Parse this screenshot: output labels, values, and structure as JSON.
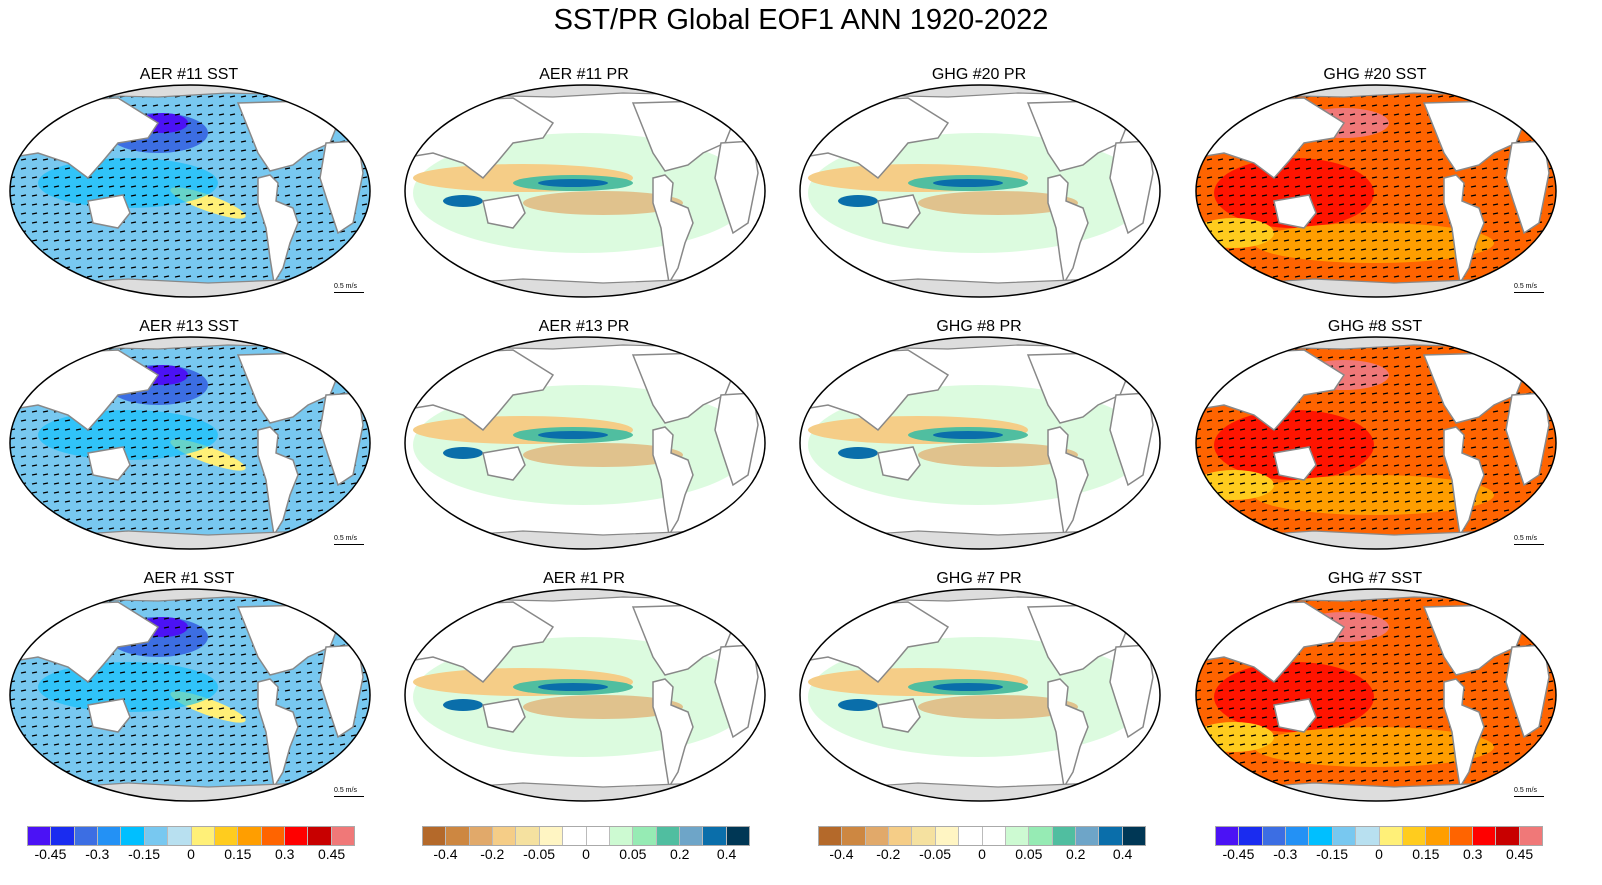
{
  "title": "SST/PR Global EOF1 ANN 1920-2022",
  "vector_label": "0.5 m/s",
  "panels": [
    {
      "title": "AER #11 SST",
      "type": "sst",
      "sign": -1
    },
    {
      "title": "AER #11 PR",
      "type": "pr"
    },
    {
      "title": "GHG #20 PR",
      "type": "pr"
    },
    {
      "title": "GHG #20 SST",
      "type": "sst",
      "sign": 1
    },
    {
      "title": "AER #13 SST",
      "type": "sst",
      "sign": -1
    },
    {
      "title": "AER #13 PR",
      "type": "pr"
    },
    {
      "title": "GHG #8 PR",
      "type": "pr"
    },
    {
      "title": "GHG #8 SST",
      "type": "sst",
      "sign": 1
    },
    {
      "title": "AER #1 SST",
      "type": "sst",
      "sign": -1
    },
    {
      "title": "AER #1 PR",
      "type": "pr"
    },
    {
      "title": "GHG #7 PR",
      "type": "pr"
    },
    {
      "title": "GHG #7 SST",
      "type": "sst",
      "sign": 1
    }
  ],
  "colorbars": [
    {
      "kind": "sst",
      "labels": [
        "-0.45",
        "-0.3",
        "-0.15",
        "0",
        "0.15",
        "0.3",
        "0.45"
      ]
    },
    {
      "kind": "pr",
      "labels": [
        "-0.4",
        "-0.2",
        "-0.05",
        "0",
        "0.05",
        "0.2",
        "0.4"
      ]
    },
    {
      "kind": "pr",
      "labels": [
        "-0.4",
        "-0.2",
        "-0.05",
        "0",
        "0.05",
        "0.2",
        "0.4"
      ]
    },
    {
      "kind": "sst",
      "labels": [
        "-0.45",
        "-0.3",
        "-0.15",
        "0",
        "0.15",
        "0.3",
        "0.45"
      ]
    }
  ],
  "colors": {
    "sst": [
      "#4b12f5",
      "#1a2cf0",
      "#3c6ee3",
      "#2391f5",
      "#00bfff",
      "#78c8f0",
      "#b8e0f0",
      "#fff078",
      "#ffcc1e",
      "#ff9e00",
      "#ff6400",
      "#ff0000",
      "#c80000",
      "#f07878"
    ],
    "pr": [
      "#b4692a",
      "#cd8741",
      "#e1a96a",
      "#f5cd87",
      "#f5e1a0",
      "#fff5c3",
      "#ffffff",
      "#ffffff",
      "#cdfad2",
      "#96ebb4",
      "#50bea0",
      "#6ea5c8",
      "#0a6eaa",
      "#003755"
    ]
  }
}
